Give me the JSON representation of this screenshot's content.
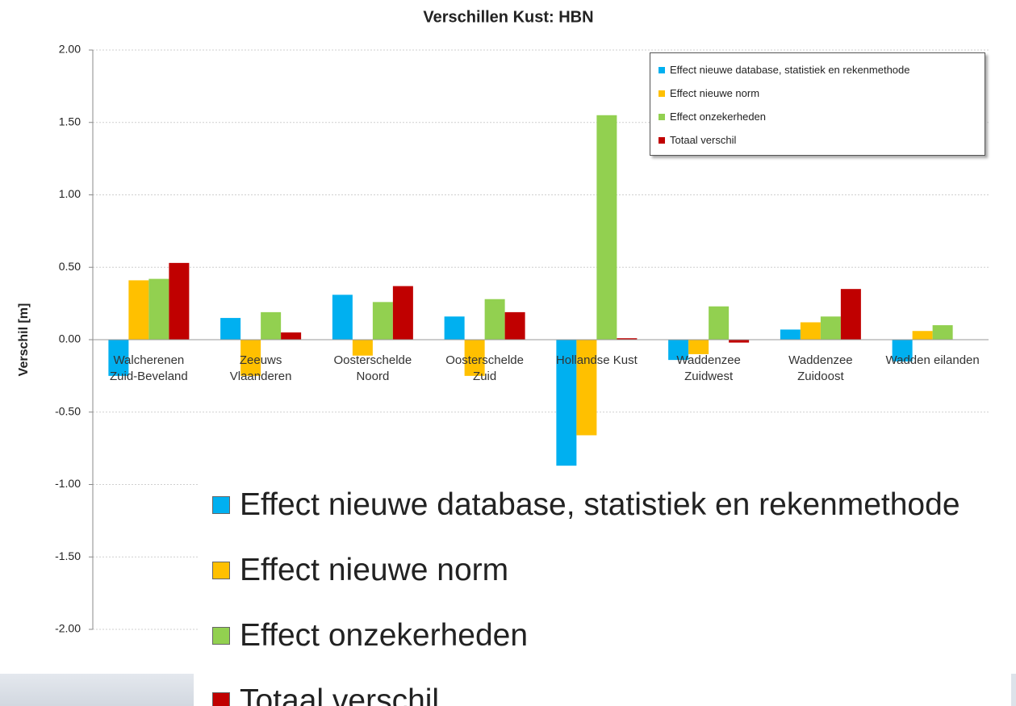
{
  "chart_data": {
    "type": "bar",
    "title": "Verschillen Kust: HBN",
    "y_label": "Verschil [m]",
    "categories": [
      "Walcherenen Zuid-Beveland",
      "Zeeuws Vlaanderen",
      "Oosterschelde Noord",
      "Oosterschelde Zuid",
      "Hollandse Kust",
      "Waddenzee Zuidwest",
      "Waddenzee Zuidoost",
      "Wadden eilanden"
    ],
    "series": [
      {
        "name": "Effect nieuwe database, statistiek en rekenmethode",
        "color": "#00b0f0",
        "values": [
          -0.25,
          0.15,
          0.31,
          0.16,
          -0.87,
          -0.14,
          0.07,
          -0.15
        ]
      },
      {
        "name": "Effect nieuwe norm",
        "color": "#ffc000",
        "values": [
          0.41,
          -0.25,
          -0.11,
          -0.25,
          -0.66,
          -0.1,
          0.12,
          0.06
        ]
      },
      {
        "name": "Effect onzekerheden",
        "color": "#92d050",
        "values": [
          0.42,
          0.19,
          0.26,
          0.28,
          1.55,
          0.23,
          0.16,
          0.1
        ]
      },
      {
        "name": "Totaal verschil",
        "color": "#c00000",
        "values": [
          0.53,
          0.05,
          0.37,
          0.19,
          0.01,
          -0.02,
          0.35,
          0.0
        ]
      }
    ],
    "ylim": [
      -2,
      2
    ],
    "yticks": [
      {
        "value": -2,
        "label": "-2.00"
      },
      {
        "value": -1.5,
        "label": "-1.50"
      },
      {
        "value": -1,
        "label": "-1.00"
      },
      {
        "value": -0.5,
        "label": "-0.50"
      },
      {
        "value": 0,
        "label": "0.00"
      },
      {
        "value": 0.5,
        "label": "0.50"
      },
      {
        "value": 1,
        "label": "1.00"
      },
      {
        "value": 1.5,
        "label": "1.50"
      },
      {
        "value": 2,
        "label": "2.00"
      }
    ],
    "grid": true,
    "legend": "top-right"
  }
}
